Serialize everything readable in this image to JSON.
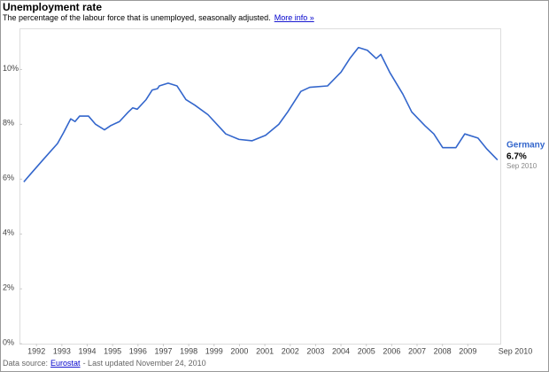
{
  "chart_data": {
    "type": "line",
    "title": "Unemployment rate",
    "subtitle": "The percentage of the labour force that is unemployed, seasonally adjusted.",
    "subtitle_link": "More info »",
    "x": [
      1992.0,
      1992.28,
      1992.8,
      1993.33,
      1993.57,
      1993.85,
      1994.02,
      1994.2,
      1994.55,
      1994.83,
      1995.18,
      1995.42,
      1995.77,
      1996.12,
      1996.29,
      1996.47,
      1996.82,
      1997.06,
      1997.27,
      1997.34,
      1997.69,
      1998.04,
      1998.39,
      1998.74,
      1999.26,
      1999.96,
      2000.48,
      2001.0,
      2001.53,
      2002.05,
      2002.4,
      2002.92,
      2003.27,
      2003.97,
      2004.5,
      2004.85,
      2005.19,
      2005.54,
      2005.89,
      2006.07,
      2006.42,
      2006.94,
      2007.29,
      2007.81,
      2008.16,
      2008.51,
      2009.03,
      2009.38,
      2009.9,
      2010.25,
      2010.67
    ],
    "series": [
      {
        "name": "Germany",
        "color": "#3366cc",
        "values": [
          5.9,
          6.2,
          6.75,
          7.3,
          7.7,
          8.2,
          8.1,
          8.3,
          8.3,
          8.0,
          7.8,
          7.95,
          8.1,
          8.45,
          8.6,
          8.55,
          8.9,
          9.25,
          9.3,
          9.4,
          9.5,
          9.4,
          8.9,
          8.7,
          8.35,
          7.65,
          7.45,
          7.4,
          7.6,
          8.0,
          8.45,
          9.2,
          9.35,
          9.4,
          9.9,
          10.4,
          10.8,
          10.7,
          10.4,
          10.55,
          9.9,
          9.1,
          8.45,
          7.95,
          7.65,
          7.15,
          7.15,
          7.65,
          7.5,
          7.1,
          6.7
        ],
        "value_labels": [
          null,
          null,
          null,
          null,
          null,
          null,
          null,
          null,
          null,
          null,
          null,
          null,
          null,
          null,
          null,
          null,
          null,
          null,
          null,
          null,
          null,
          null,
          null,
          null,
          null,
          null,
          null,
          null,
          null,
          null,
          null,
          null,
          null,
          null,
          null,
          null,
          null,
          null,
          null,
          null,
          null,
          null,
          null,
          null,
          null,
          null,
          null,
          null,
          null,
          null,
          "6.7%"
        ]
      }
    ],
    "x_end_label": "Sep 2010",
    "xlim": [
      1991.83,
      2010.78
    ],
    "xticks": [
      {
        "value": 1992.5,
        "label": "1992"
      },
      {
        "value": 1993.5,
        "label": "1993"
      },
      {
        "value": 1994.5,
        "label": "1994"
      },
      {
        "value": 1995.5,
        "label": "1995"
      },
      {
        "value": 1996.5,
        "label": "1996"
      },
      {
        "value": 1997.5,
        "label": "1997"
      },
      {
        "value": 1998.5,
        "label": "1998"
      },
      {
        "value": 1999.5,
        "label": "1999"
      },
      {
        "value": 2000.5,
        "label": "2000"
      },
      {
        "value": 2001.5,
        "label": "2001"
      },
      {
        "value": 2002.5,
        "label": "2002"
      },
      {
        "value": 2003.5,
        "label": "2003"
      },
      {
        "value": 2004.5,
        "label": "2004"
      },
      {
        "value": 2005.5,
        "label": "2005"
      },
      {
        "value": 2006.5,
        "label": "2006"
      },
      {
        "value": 2007.5,
        "label": "2007"
      },
      {
        "value": 2008.5,
        "label": "2008"
      },
      {
        "value": 2009.5,
        "label": "2009"
      }
    ],
    "ylim": [
      0,
      11.5
    ],
    "yticks": [
      {
        "value": 0,
        "label": "0%"
      },
      {
        "value": 2,
        "label": "2%"
      },
      {
        "value": 4,
        "label": "4%"
      },
      {
        "value": 6,
        "label": "6%"
      },
      {
        "value": 8,
        "label": "8%"
      },
      {
        "value": 10,
        "label": "10%"
      }
    ],
    "source_prefix": "Data source:",
    "source_link": "Eurostat",
    "source_suffix": "- Last updated November 24, 2010"
  }
}
